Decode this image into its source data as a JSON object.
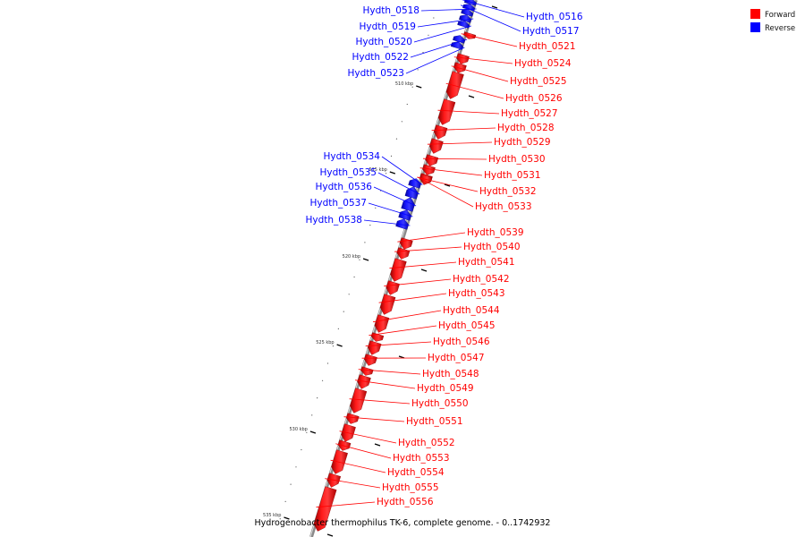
{
  "caption": "Hydrogenobacter thermophilus TK-6, complete genome. - 0..1742932",
  "legend": [
    {
      "label": "Forward",
      "color": "#ff0000"
    },
    {
      "label": "Reverse",
      "color": "#0000ff"
    }
  ],
  "tick_labels": [
    "510 kbp",
    "515 kbp",
    "520 kbp",
    "525 kbp",
    "530 kbp",
    "535 kbp"
  ],
  "genes": [
    {
      "id": "Hydth_0516",
      "strand": "reverse"
    },
    {
      "id": "Hydth_0517",
      "strand": "reverse"
    },
    {
      "id": "Hydth_0518",
      "strand": "reverse"
    },
    {
      "id": "Hydth_0519",
      "strand": "reverse"
    },
    {
      "id": "Hydth_0520",
      "strand": "reverse"
    },
    {
      "id": "Hydth_0521",
      "strand": "forward"
    },
    {
      "id": "Hydth_0522",
      "strand": "reverse"
    },
    {
      "id": "Hydth_0523",
      "strand": "reverse"
    },
    {
      "id": "Hydth_0524",
      "strand": "forward"
    },
    {
      "id": "Hydth_0525",
      "strand": "forward"
    },
    {
      "id": "Hydth_0526",
      "strand": "forward"
    },
    {
      "id": "Hydth_0527",
      "strand": "forward"
    },
    {
      "id": "Hydth_0528",
      "strand": "forward"
    },
    {
      "id": "Hydth_0529",
      "strand": "forward"
    },
    {
      "id": "Hydth_0530",
      "strand": "forward"
    },
    {
      "id": "Hydth_0531",
      "strand": "forward"
    },
    {
      "id": "Hydth_0532",
      "strand": "forward"
    },
    {
      "id": "Hydth_0533",
      "strand": "forward"
    },
    {
      "id": "Hydth_0534",
      "strand": "reverse"
    },
    {
      "id": "Hydth_0535",
      "strand": "reverse"
    },
    {
      "id": "Hydth_0536",
      "strand": "reverse"
    },
    {
      "id": "Hydth_0537",
      "strand": "reverse"
    },
    {
      "id": "Hydth_0538",
      "strand": "reverse"
    },
    {
      "id": "Hydth_0539",
      "strand": "forward"
    },
    {
      "id": "Hydth_0540",
      "strand": "forward"
    },
    {
      "id": "Hydth_0541",
      "strand": "forward"
    },
    {
      "id": "Hydth_0542",
      "strand": "forward"
    },
    {
      "id": "Hydth_0543",
      "strand": "forward"
    },
    {
      "id": "Hydth_0544",
      "strand": "forward"
    },
    {
      "id": "Hydth_0545",
      "strand": "forward"
    },
    {
      "id": "Hydth_0546",
      "strand": "forward"
    },
    {
      "id": "Hydth_0547",
      "strand": "forward"
    },
    {
      "id": "Hydth_0548",
      "strand": "forward"
    },
    {
      "id": "Hydth_0549",
      "strand": "forward"
    },
    {
      "id": "Hydth_0550",
      "strand": "forward"
    },
    {
      "id": "Hydth_0551",
      "strand": "forward"
    },
    {
      "id": "Hydth_0552",
      "strand": "forward"
    },
    {
      "id": "Hydth_0553",
      "strand": "forward"
    },
    {
      "id": "Hydth_0554",
      "strand": "forward"
    },
    {
      "id": "Hydth_0555",
      "strand": "forward"
    },
    {
      "id": "Hydth_0556",
      "strand": "forward"
    }
  ]
}
